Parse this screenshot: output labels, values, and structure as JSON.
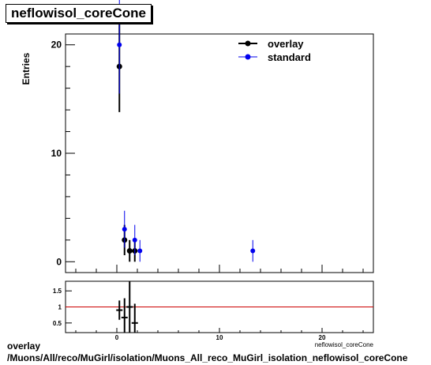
{
  "title": "neflowisol_coreCone",
  "caption": {
    "line1": "overlay",
    "line2": "/Muons/All/reco/MuGirl/isolation/Muons_All_reco_MuGirl_isolation_neflowisol_coreCone"
  },
  "colors": {
    "overlay": "#000000",
    "standard": "#0000ee",
    "ratio_line": "#cc0000"
  },
  "chart_data": [
    {
      "type": "scatter",
      "xlim": [
        -5,
        25
      ],
      "ylim": [
        -1,
        21
      ],
      "ylabel": "Entries",
      "xlabel": "",
      "x_ticks": [
        0,
        10,
        20
      ],
      "y_ticks": [
        0,
        10,
        20
      ],
      "legend": {
        "position": "top-right",
        "entries": [
          "overlay",
          "standard"
        ]
      },
      "series": [
        {
          "name": "overlay",
          "color": "#000000",
          "x": [
            0.25,
            0.75,
            1.25,
            1.75
          ],
          "y": [
            18,
            2,
            1,
            1
          ],
          "err_low": [
            4.2,
            1.4,
            1,
            1
          ],
          "err_high": [
            4.2,
            1.4,
            1,
            1
          ]
        },
        {
          "name": "standard",
          "color": "#0000ee",
          "x": [
            0.25,
            0.75,
            1.75,
            2.25,
            13.25
          ],
          "y": [
            20,
            3,
            2,
            1,
            1
          ],
          "err_low": [
            4.5,
            1.7,
            1.4,
            1,
            1
          ],
          "err_high": [
            4.5,
            1.7,
            1.4,
            1,
            1
          ]
        }
      ]
    },
    {
      "type": "scatter",
      "xlim": [
        -5,
        25
      ],
      "ylim": [
        0.2,
        1.8
      ],
      "x_ticks": [
        0,
        10,
        20
      ],
      "y_ticks": [
        0.5,
        1,
        1.5
      ],
      "xlabel": "neflowisol_coreCone",
      "reference_line": 1,
      "series": [
        {
          "x": [
            0.25,
            0.75,
            1.25,
            1.75
          ],
          "y": [
            0.9,
            0.67,
            1.0,
            0.5
          ],
          "err_low": [
            0.3,
            0.6,
            1.2,
            0.6
          ],
          "err_high": [
            0.3,
            0.6,
            1.2,
            0.6
          ]
        }
      ]
    }
  ]
}
